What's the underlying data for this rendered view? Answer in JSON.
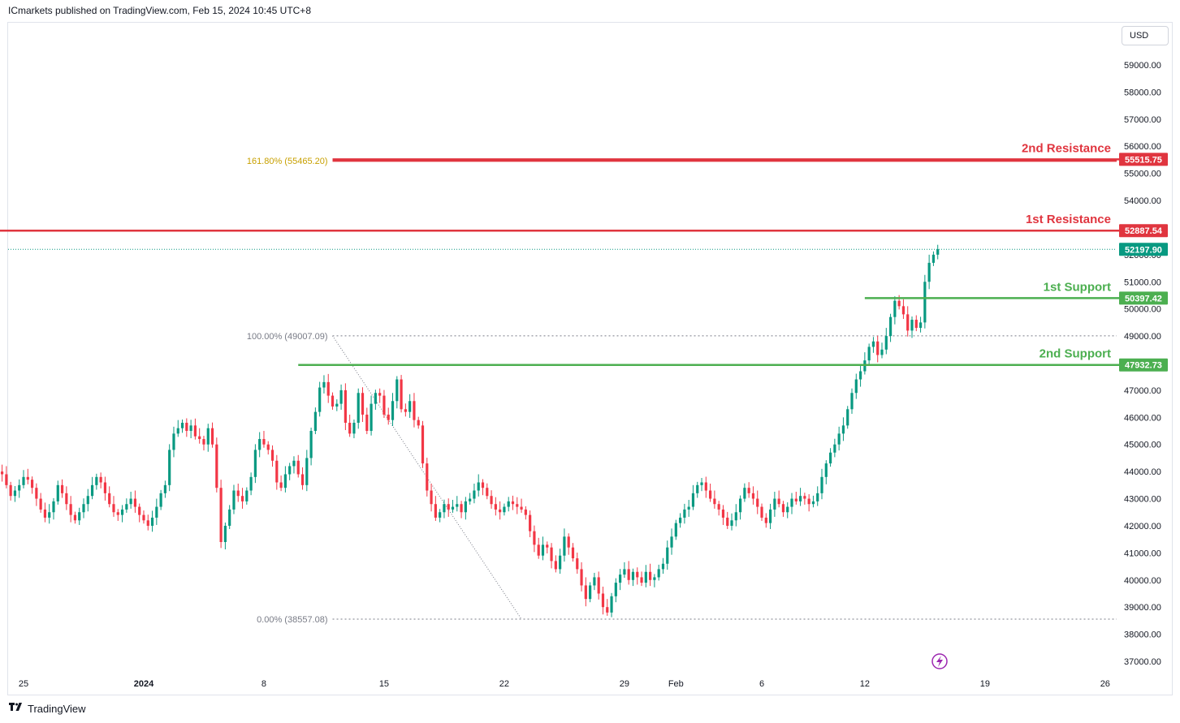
{
  "header": {
    "published": "ICmarkets published on TradingView.com, Feb 15, 2024 10:45 UTC+8"
  },
  "currency": "USD",
  "footer": {
    "brand": "TradingView",
    "logo_icon": "tradingview-logo-icon"
  },
  "replay_icon": "lightning-icon",
  "chart_data": {
    "type": "candlestick",
    "symbol_quote": "USD",
    "ylim": [
      36700,
      59700
    ],
    "y_ticks": [
      "37000.00",
      "38000.00",
      "39000.00",
      "40000.00",
      "41000.00",
      "42000.00",
      "43000.00",
      "44000.00",
      "45000.00",
      "46000.00",
      "47000.00",
      "48000.00",
      "49000.00",
      "50000.00",
      "51000.00",
      "52000.00",
      "53000.00",
      "54000.00",
      "55000.00",
      "56000.00",
      "57000.00",
      "58000.00",
      "59000.00"
    ],
    "x_ticks": [
      "25",
      "2024",
      "8",
      "15",
      "22",
      "29",
      "Feb",
      "6",
      "12",
      "19",
      "26"
    ],
    "x_tick_dates": [
      "2023-12-25",
      "2024-01-01",
      "2024-01-08",
      "2024-01-15",
      "2024-01-22",
      "2024-01-29",
      "2024-02-01",
      "2024-02-06",
      "2024-02-12",
      "2024-02-19",
      "2024-02-26"
    ],
    "levels": [
      {
        "label": "2nd Resistance",
        "price": 55515.75,
        "price_label": "55515.75",
        "color": "#e0353f",
        "start": "2024-01-12"
      },
      {
        "label": "1st Resistance",
        "price": 52887.54,
        "price_label": "52887.54",
        "color": "#e0353f",
        "start": "2023-12-23"
      },
      {
        "label": "1st Support",
        "price": 50397.42,
        "price_label": "50397.42",
        "color": "#4caf50",
        "start": "2024-02-12"
      },
      {
        "label": "2nd Support",
        "price": 47932.73,
        "price_label": "47932.73",
        "color": "#4caf50",
        "start": "2024-01-10"
      }
    ],
    "current_price": {
      "price": 52197.9,
      "price_label": "52197.90",
      "color": "#089981"
    },
    "fibonacci": [
      {
        "label": "161.80% (55465.20)",
        "price": 55465.2,
        "color": "#c8a000"
      },
      {
        "label": "100.00% (49007.09)",
        "price": 49007.09,
        "color": "#787b86"
      },
      {
        "label": "0.00% (38557.08)",
        "price": 38557.08,
        "color": "#787b86"
      }
    ],
    "fib_start": "2024-01-12",
    "trend_line": {
      "from": [
        "2024-01-12",
        49007.09
      ],
      "to": [
        "2024-01-23",
        38557.08
      ]
    },
    "candle_start": "2023-12-23",
    "candle_interval_hours": 6,
    "candle_closes": [
      44500,
      44200,
      44000,
      43900,
      43500,
      43100,
      43300,
      43500,
      43800,
      43700,
      43400,
      43000,
      42600,
      42300,
      42500,
      42900,
      43500,
      43200,
      42800,
      42400,
      42200,
      42500,
      42800,
      43100,
      43500,
      43800,
      43600,
      43200,
      42800,
      42500,
      42400,
      42600,
      42800,
      43000,
      42700,
      42400,
      42200,
      42000,
      42300,
      42700,
      43200,
      43500,
      44800,
      45400,
      45600,
      45800,
      45500,
      45700,
      45300,
      45200,
      45000,
      45600,
      45000,
      43400,
      41400,
      42000,
      42600,
      43300,
      43100,
      42900,
      43300,
      43800,
      44800,
      45200,
      45000,
      44800,
      44400,
      43600,
      43400,
      43900,
      44200,
      44400,
      43900,
      43500,
      44500,
      45500,
      46200,
      47100,
      47300,
      46800,
      46400,
      46500,
      47000,
      45800,
      45400,
      45800,
      46900,
      46100,
      45500,
      46500,
      46900,
      46800,
      46100,
      45900,
      46600,
      47400,
      46300,
      46200,
      46600,
      45900,
      45700,
      44300,
      43300,
      42800,
      42300,
      42500,
      42800,
      42600,
      42700,
      42800,
      42500,
      42900,
      43000,
      43300,
      43600,
      43400,
      43100,
      42800,
      42600,
      42500,
      42700,
      42900,
      42800,
      42700,
      42600,
      42400,
      41800,
      41300,
      40900,
      41300,
      41200,
      40700,
      40400,
      40900,
      41600,
      41200,
      40800,
      40400,
      39800,
      39300,
      39800,
      40100,
      39500,
      39000,
      38800,
      39400,
      39900,
      40200,
      40400,
      40000,
      40300,
      40100,
      39900,
      40300,
      40000,
      40100,
      40400,
      40600,
      41200,
      41600,
      42100,
      42300,
      42600,
      42700,
      43200,
      43500,
      43600,
      43300,
      43000,
      42800,
      42600,
      42300,
      42000,
      42200,
      42500,
      43000,
      43400,
      43200,
      43000,
      42700,
      42300,
      42100,
      42600,
      43000,
      42800,
      42500,
      42700,
      43000,
      42900,
      43100,
      43000,
      42800,
      42900,
      43200,
      43800,
      44300,
      44700,
      45000,
      45400,
      45700,
      46300,
      46900,
      47400,
      47700,
      48100,
      48600,
      48800,
      48300,
      48500,
      49000,
      49700,
      50300,
      50100,
      49800,
      49200,
      49600,
      49300,
      49500,
      51000,
      51700,
      52000,
      52200
    ]
  }
}
